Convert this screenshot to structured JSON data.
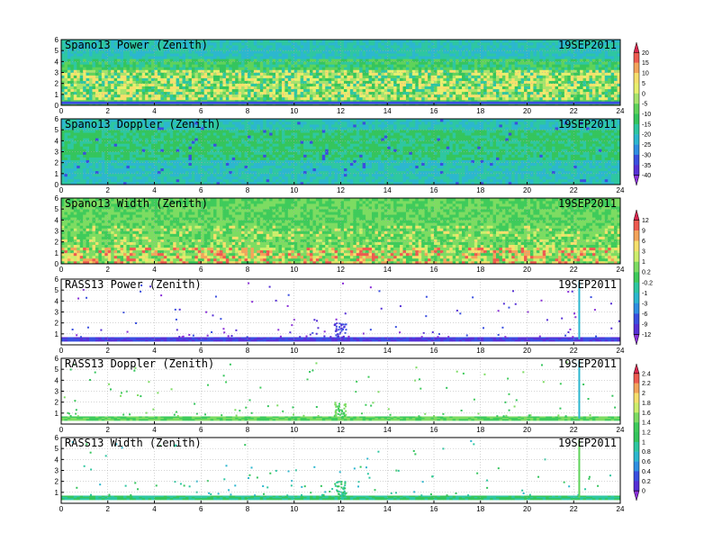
{
  "chart_data": [
    {
      "type": "heatmap",
      "title": "Spano13 Power (Zenith)",
      "date": "19SEP2011",
      "xlim": [
        0,
        24
      ],
      "ylim": [
        0,
        6
      ],
      "xticks": [
        0,
        2,
        4,
        6,
        8,
        10,
        12,
        14,
        16,
        18,
        20,
        22,
        24
      ],
      "yticks": [
        0,
        1,
        2,
        3,
        4,
        5,
        6
      ],
      "colorbar": "cb1"
    },
    {
      "type": "heatmap",
      "title": "Spano13 Doppler (Zenith)",
      "date": "19SEP2011",
      "xlim": [
        0,
        24
      ],
      "ylim": [
        0,
        6
      ],
      "xticks": [
        0,
        2,
        4,
        6,
        8,
        10,
        12,
        14,
        16,
        18,
        20,
        22,
        24
      ],
      "yticks": [
        0,
        1,
        2,
        3,
        4,
        5,
        6
      ]
    },
    {
      "type": "heatmap",
      "title": "Spano13 Width (Zenith)",
      "date": "19SEP2011",
      "xlim": [
        0,
        24
      ],
      "ylim": [
        0,
        6
      ],
      "xticks": [
        0,
        2,
        4,
        6,
        8,
        10,
        12,
        14,
        16,
        18,
        20,
        22,
        24
      ],
      "yticks": [
        0,
        1,
        2,
        3,
        4,
        5,
        6
      ],
      "colorbar": "cb2"
    },
    {
      "type": "heatmap",
      "title": "RASS13 Power (Zenith)",
      "date": "19SEP2011",
      "xlim": [
        0,
        24
      ],
      "ylim": [
        0,
        6
      ],
      "xticks": [
        0,
        2,
        4,
        6,
        8,
        10,
        12,
        14,
        16,
        18,
        20,
        22,
        24
      ],
      "yticks": [
        1,
        2,
        3,
        4,
        5,
        6
      ]
    },
    {
      "type": "heatmap",
      "title": "RASS13 Doppler (Zenith)",
      "date": "19SEP2011",
      "xlim": [
        0,
        24
      ],
      "ylim": [
        0,
        6
      ],
      "xticks": [
        0,
        2,
        4,
        6,
        8,
        10,
        12,
        14,
        16,
        18,
        20,
        22,
        24
      ],
      "yticks": [
        1,
        2,
        3,
        4,
        5,
        6
      ],
      "colorbar": "cb3"
    },
    {
      "type": "heatmap",
      "title": "RASS13 Width (Zenith)",
      "date": "19SEP2011",
      "xlim": [
        0,
        24
      ],
      "ylim": [
        0,
        6
      ],
      "xticks": [
        0,
        2,
        4,
        6,
        8,
        10,
        12,
        14,
        16,
        18,
        20,
        22,
        24
      ],
      "yticks": [
        1,
        2,
        3,
        4,
        5,
        6
      ]
    }
  ],
  "colorbars": {
    "cb1": {
      "labels": [
        "20",
        "15",
        "10",
        "5",
        "0",
        "-5",
        "-10",
        "-15",
        "-20",
        "-25",
        "-30",
        "-35",
        "-40"
      ],
      "colors": [
        "#d7264d",
        "#ee5a50",
        "#f4a45a",
        "#f6e06c",
        "#e8f06e",
        "#a7e46c",
        "#5fd35a",
        "#35c55d",
        "#2ec7a1",
        "#2cb7cf",
        "#2f8fe2",
        "#3a4fe0",
        "#5630d6",
        "#8a2fd8"
      ]
    },
    "cb2": {
      "labels": [
        "12",
        "9",
        "6",
        "3",
        "1",
        "0.2",
        "-0.2",
        "-1",
        "-3",
        "-6",
        "-9",
        "-12"
      ],
      "colors": [
        "#d7264d",
        "#ee5a50",
        "#f4a45a",
        "#f6e06c",
        "#cdee6c",
        "#7ddc62",
        "#3fcb5b",
        "#2ec7a1",
        "#2cb7cf",
        "#2f8fe2",
        "#3a4fe0",
        "#5630d6",
        "#8a2fd8"
      ]
    },
    "cb3": {
      "labels": [
        "2.4",
        "2.2",
        "2",
        "1.8",
        "1.6",
        "1.4",
        "1.2",
        "1",
        "0.8",
        "0.6",
        "0.4",
        "0.2",
        "0"
      ],
      "colors": [
        "#d7264d",
        "#ee5a50",
        "#f4a45a",
        "#f6e06c",
        "#cdee6c",
        "#7ddc62",
        "#3fcb5b",
        "#35c55d",
        "#2ec7a1",
        "#2cb7cf",
        "#2f8fe2",
        "#3a4fe0",
        "#5630d6",
        "#8a2fd8"
      ]
    }
  }
}
